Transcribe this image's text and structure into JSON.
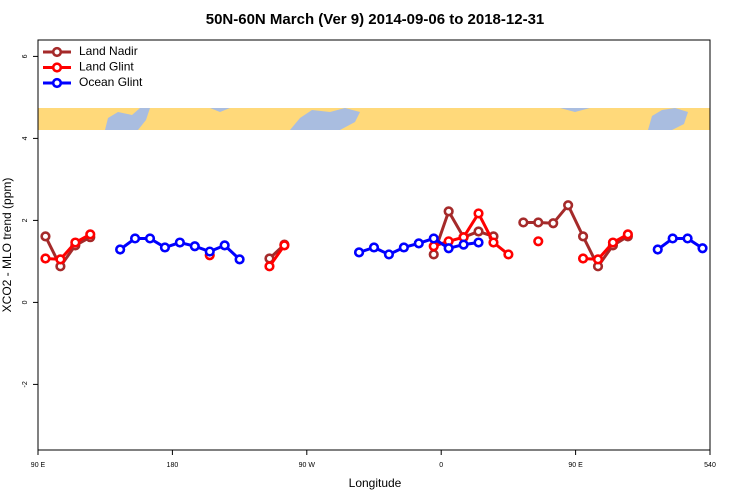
{
  "chart_data": {
    "type": "line",
    "title": "50N-60N March (Ver 9)   2014-09-06 to 2018-12-31",
    "x_label": "Longitude",
    "y_label": "XCO2 - MLO trend (ppm)",
    "xlim": [
      90,
      540
    ],
    "xticks": [
      {
        "value": 90,
        "label": "90 E"
      },
      180,
      {
        "value": 270,
        "label": "90 W"
      },
      {
        "value": 360,
        "label": "0"
      },
      {
        "value": 450,
        "label": "90 E"
      },
      540
    ],
    "ylim": [
      -3.6,
      6.4
    ],
    "yticks": [
      -2,
      0,
      2,
      4,
      6
    ],
    "legend": "top-left",
    "series": [
      {
        "name": "Land Nadir",
        "color": "#a52a2a",
        "x": [
          95,
          105,
          115,
          125,
          135,
          245,
          255,
          265,
          355,
          365,
          375,
          385,
          395,
          405,
          415,
          425,
          435,
          445,
          455,
          465,
          475,
          485
        ],
        "values": [
          1.61,
          0.88,
          1.39,
          1.59,
          null,
          1.07,
          1.41,
          null,
          1.17,
          2.22,
          1.59,
          1.73,
          1.61,
          null,
          1.95,
          1.95,
          1.93,
          2.37,
          1.61,
          0.88,
          1.39,
          1.61
        ]
      },
      {
        "name": "Land Glint",
        "color": "#ff0000",
        "x": [
          95,
          105,
          115,
          125,
          135,
          205,
          215,
          245,
          255,
          265,
          355,
          365,
          375,
          385,
          395,
          405,
          415,
          425,
          435,
          455,
          465,
          475,
          485
        ],
        "values": [
          1.07,
          1.05,
          1.46,
          1.66,
          null,
          1.15,
          null,
          0.88,
          1.39,
          null,
          1.37,
          1.49,
          1.59,
          2.17,
          1.46,
          1.17,
          null,
          1.49,
          null,
          1.07,
          1.05,
          1.46,
          1.66
        ]
      },
      {
        "name": "Ocean Glint",
        "color": "#0000ff",
        "x": [
          145,
          155,
          165,
          175,
          185,
          195,
          205,
          215,
          225,
          235,
          305,
          315,
          325,
          335,
          345,
          355,
          365,
          375,
          385,
          395,
          505,
          515,
          525,
          535
        ],
        "values": [
          1.29,
          1.56,
          1.56,
          1.34,
          1.46,
          1.37,
          1.24,
          1.39,
          1.05,
          null,
          1.22,
          1.34,
          1.17,
          1.34,
          1.44,
          1.56,
          1.32,
          1.41,
          1.46,
          null,
          1.29,
          1.56,
          1.56,
          1.32
        ]
      }
    ]
  }
}
